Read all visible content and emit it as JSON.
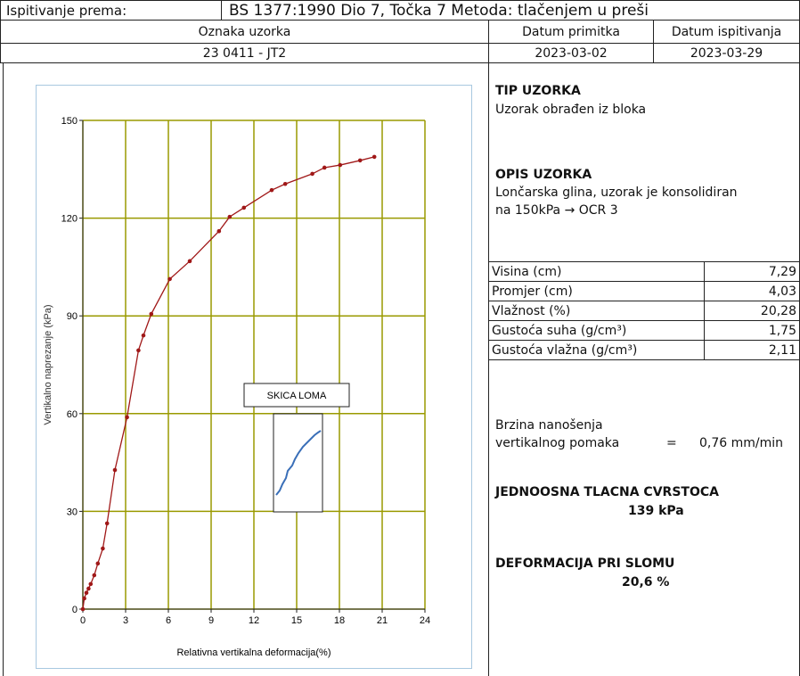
{
  "header": {
    "standard_label": "Ispitivanje prema:",
    "standard": "BS 1377:1990 Dio 7, Točka 7 Metoda: tlačenjem u preši",
    "columns": [
      "Oznaka uzorka",
      "Datum primitka",
      "Datum ispitivanja"
    ],
    "values": [
      "23 0411 - JT2",
      "2023-03-02",
      "2023-03-29"
    ]
  },
  "chart_data": {
    "type": "line",
    "x_label": "Relativna vertikalna deformacija(%)",
    "y_label": "Vertikalno naprezanje (kPa)",
    "x": [
      0,
      0.1,
      0.25,
      0.4,
      0.55,
      0.8,
      1.05,
      1.4,
      1.7,
      2.25,
      3.1,
      3.9,
      4.25,
      4.8,
      6.1,
      7.5,
      9.55,
      10.3,
      11.3,
      13.25,
      14.2,
      16.1,
      16.95,
      18.05,
      19.45,
      20.45
    ],
    "values": [
      0,
      3.3,
      5,
      6.3,
      7.7,
      10.4,
      14,
      18.6,
      26.3,
      42.7,
      58.9,
      79.4,
      84,
      90.6,
      101.3,
      106.8,
      116,
      120.4,
      123.2,
      128.6,
      130.5,
      133.6,
      135.5,
      136.3,
      137.7,
      138.8
    ],
    "color": "#a01818",
    "grid": true,
    "grid_color": "#9a9a00",
    "xlim": [
      0,
      24
    ],
    "ylim": [
      0,
      150
    ],
    "xticks": [
      0,
      3,
      6,
      9,
      12,
      15,
      18,
      21,
      24
    ],
    "yticks": [
      0,
      30,
      60,
      90,
      120,
      150
    ],
    "sketch_label": "SKICA LOMA"
  },
  "sample_type": {
    "title": "TIP UZORKA",
    "text": "Uzorak obrađen iz bloka"
  },
  "sample_description": {
    "title": "OPIS UZORKA",
    "lines": [
      "Lončarska glina, uzorak je konsolidiran",
      "na 150kPa → OCR 3"
    ]
  },
  "properties": [
    [
      "Visina (cm)",
      "7,29"
    ],
    [
      "Promjer (cm)",
      "4,03"
    ],
    [
      "Vlažnost (%)",
      "20,28"
    ],
    [
      "Gustoća suha (g/cm³)",
      "1,75"
    ],
    [
      "Gustoća vlažna (g/cm³)",
      "2,11"
    ]
  ],
  "loading_rate": {
    "label_lines": [
      "Brzina nanošenja",
      "vertikalnog pomaka"
    ],
    "equals": "=",
    "value": "0,76 mm/min"
  },
  "strength": {
    "title": "JEDNOOSNA TLACNA CVRSTOCA",
    "value": "139 kPa"
  },
  "failure_strain": {
    "title": "DEFORMACIJA PRI SLOMU",
    "value": "20,6 %"
  }
}
